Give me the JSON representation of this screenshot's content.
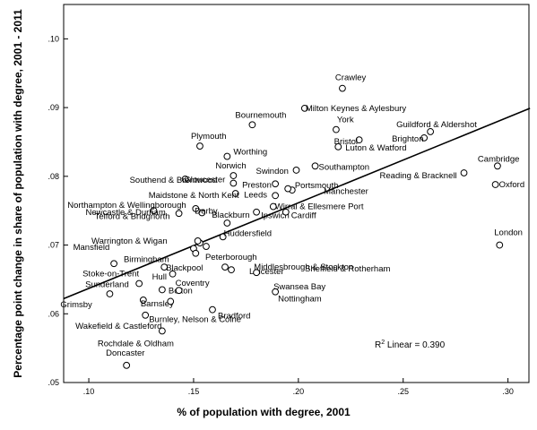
{
  "chart_data": {
    "type": "scatter",
    "xlabel": "% of population with degree, 2001",
    "ylabel": "Percentage point change in share of population with degree, 2001 - 2011",
    "xlim": [
      0.088,
      0.31
    ],
    "ylim": [
      0.05,
      0.105
    ],
    "x_ticks": [
      {
        "value": 0.1,
        "label": ".10"
      },
      {
        "value": 0.15,
        "label": ".15"
      },
      {
        "value": 0.2,
        "label": ".20"
      },
      {
        "value": 0.25,
        "label": ".25"
      },
      {
        "value": 0.3,
        "label": ".30"
      }
    ],
    "y_ticks": [
      {
        "value": 0.05,
        "label": ".05"
      },
      {
        "value": 0.06,
        "label": ".06"
      },
      {
        "value": 0.07,
        "label": ".07"
      },
      {
        "value": 0.08,
        "label": ".08"
      },
      {
        "value": 0.09,
        "label": ".09"
      },
      {
        "value": 0.1,
        "label": ".10"
      }
    ],
    "grid": false,
    "fit_line": {
      "type": "linear",
      "r2_label": "R² Linear = 0.390",
      "start": [
        0.088,
        0.0622
      ],
      "end": [
        0.3105,
        0.0899
      ]
    },
    "points": [
      {
        "name": "Crawley",
        "x": 0.221,
        "y": 0.0928
      },
      {
        "name": "Milton Keynes & Aylesbury",
        "x": 0.203,
        "y": 0.0899
      },
      {
        "name": "York",
        "x": 0.218,
        "y": 0.0868
      },
      {
        "name": "Bournemouth",
        "x": 0.178,
        "y": 0.0875
      },
      {
        "name": "Guildford & Aldershot",
        "x": 0.263,
        "y": 0.0865
      },
      {
        "name": "Brighton",
        "x": 0.26,
        "y": 0.0856
      },
      {
        "name": "Bristol",
        "x": 0.229,
        "y": 0.0853
      },
      {
        "name": "Luton & Watford",
        "x": 0.219,
        "y": 0.0843
      },
      {
        "name": "Plymouth",
        "x": 0.153,
        "y": 0.0844
      },
      {
        "name": "Worthing",
        "x": 0.166,
        "y": 0.0829
      },
      {
        "name": "Cambridge",
        "x": 0.295,
        "y": 0.0815
      },
      {
        "name": "Southampton",
        "x": 0.208,
        "y": 0.0815
      },
      {
        "name": "Swindon",
        "x": 0.199,
        "y": 0.0809
      },
      {
        "name": "Southend & Brentwood",
        "x": 0.146,
        "y": 0.0796
      },
      {
        "name": "Norwich",
        "x": 0.169,
        "y": 0.0801
      },
      {
        "name": "Reading & Bracknell",
        "x": 0.279,
        "y": 0.0805
      },
      {
        "name": "Preston",
        "x": 0.189,
        "y": 0.0789
      },
      {
        "name": "Portsmouth",
        "x": 0.197,
        "y": 0.078
      },
      {
        "name": "Gloucester",
        "x": 0.169,
        "y": 0.079
      },
      {
        "name": "Oxford",
        "x": 0.294,
        "y": 0.0788
      },
      {
        "name": "Manchester",
        "x": 0.195,
        "y": 0.0782
      },
      {
        "name": "Newcastle & Durham",
        "x": 0.131,
        "y": 0.075
      },
      {
        "name": "Maidstone & North Kent",
        "x": 0.17,
        "y": 0.0775
      },
      {
        "name": "Leeds",
        "x": 0.189,
        "y": 0.0772
      },
      {
        "name": "Wirral & Ellesmere Port",
        "x": 0.188,
        "y": 0.0756
      },
      {
        "name": "Ipswich",
        "x": 0.18,
        "y": 0.0748
      },
      {
        "name": "Cardiff",
        "x": 0.194,
        "y": 0.0748
      },
      {
        "name": "Northampton & Wellingborough",
        "x": 0.151,
        "y": 0.0753
      },
      {
        "name": "Derby",
        "x": 0.154,
        "y": 0.0747
      },
      {
        "name": "Telford & Bridgnorth",
        "x": 0.143,
        "y": 0.0746
      },
      {
        "name": "Blackburn",
        "x": 0.166,
        "y": 0.0732
      },
      {
        "name": "Huddersfield",
        "x": 0.164,
        "y": 0.0712
      },
      {
        "name": "Warrington & Wigan",
        "x": 0.153,
        "y": 0.0703
      },
      {
        "name": "London",
        "x": 0.296,
        "y": 0.07
      },
      {
        "name": "Mansfield",
        "x": 0.152,
        "y": 0.0706
      },
      {
        "name": "Birmingham",
        "x": 0.15,
        "y": 0.0695
      },
      {
        "name": "Peterborough",
        "x": 0.156,
        "y": 0.0698
      },
      {
        "name": "Middlesbrough & Stockton",
        "x": 0.151,
        "y": 0.0688
      },
      {
        "name": "Stoke-on-Trent",
        "x": 0.112,
        "y": 0.0673
      },
      {
        "name": "Blackpool",
        "x": 0.136,
        "y": 0.0668
      },
      {
        "name": "Hull",
        "x": 0.14,
        "y": 0.0658
      },
      {
        "name": "Leicester",
        "x": 0.168,
        "y": 0.0664
      },
      {
        "name": "Sheffield & Rotherham",
        "x": 0.165,
        "y": 0.0668
      },
      {
        "name": "Swansea Bay",
        "x": 0.18,
        "y": 0.066
      },
      {
        "name": "Sunderland",
        "x": 0.124,
        "y": 0.0644
      },
      {
        "name": "Bolton",
        "x": 0.135,
        "y": 0.0635
      },
      {
        "name": "Coventry",
        "x": 0.143,
        "y": 0.0634
      },
      {
        "name": "Grimsby",
        "x": 0.11,
        "y": 0.0629
      },
      {
        "name": "Barnsley",
        "x": 0.126,
        "y": 0.062
      },
      {
        "name": "Burnley, Nelson & Colne",
        "x": 0.139,
        "y": 0.0618
      },
      {
        "name": "Nottingham",
        "x": 0.189,
        "y": 0.0632
      },
      {
        "name": "Bradford",
        "x": 0.159,
        "y": 0.0606
      },
      {
        "name": "Wakefield & Castleford",
        "x": 0.127,
        "y": 0.0598
      },
      {
        "name": "Rochdale & Oldham",
        "x": 0.135,
        "y": 0.0575
      },
      {
        "name": "Doncaster",
        "x": 0.118,
        "y": 0.0525
      }
    ]
  }
}
